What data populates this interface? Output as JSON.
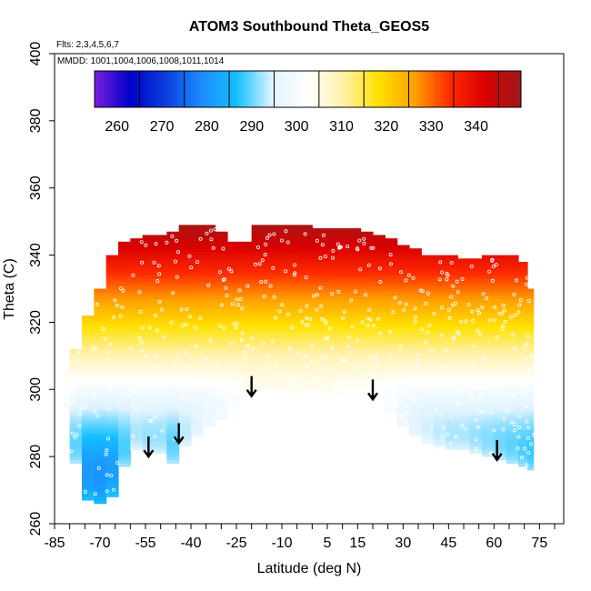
{
  "chart_data": {
    "type": "heatmap",
    "title": "ATOM3 Southbound Theta_GEOS5",
    "subtitle_flights": "Flts: 2,3,4,5,6,7",
    "subtitle_dates": "MMDD: 1001,1004,1006,1008,1011,1014",
    "xlabel": "Latitude (deg N)",
    "ylabel": "Theta (C)",
    "xlim": [
      -85,
      83
    ],
    "ylim": [
      260,
      400
    ],
    "x_ticks": [
      -85,
      -70,
      -55,
      -40,
      -25,
      -10,
      5,
      15,
      30,
      45,
      60,
      75
    ],
    "y_ticks": [
      260,
      280,
      300,
      320,
      340,
      360,
      380,
      400
    ],
    "colorbar": {
      "ticks": [
        260,
        270,
        280,
        290,
        300,
        310,
        320,
        330,
        340
      ],
      "range": [
        255,
        350
      ],
      "colors": [
        "#7b1fe0",
        "#0000c8",
        "#0b3fdc",
        "#1e8bff",
        "#13c0ff",
        "#dff3ff",
        "#ffffff",
        "#fff1a8",
        "#ffe100",
        "#ffa000",
        "#ff2a00",
        "#d90000",
        "#9e1a1a"
      ]
    },
    "curtain": {
      "lat": [
        -82,
        -78,
        -74,
        -70,
        -66,
        -62,
        -58,
        -54,
        -50,
        -46,
        -42,
        -38,
        -34,
        -30,
        -26,
        -22,
        -18,
        -14,
        -10,
        -6,
        -2,
        2,
        6,
        10,
        14,
        18,
        22,
        26,
        30,
        34,
        38,
        42,
        46,
        50,
        54,
        58,
        62,
        66,
        70,
        72
      ],
      "theta_bottom": [
        293,
        278,
        267,
        266,
        268,
        277,
        282,
        281,
        281,
        278,
        283,
        286,
        289,
        291,
        294,
        298,
        300,
        300,
        300,
        299,
        300,
        300,
        299,
        298,
        297,
        297,
        296,
        293,
        289,
        286,
        284,
        283,
        282,
        282,
        281,
        280,
        279,
        278,
        277,
        276
      ],
      "theta_top": [
        305,
        312,
        322,
        330,
        340,
        344,
        345,
        346,
        346,
        347,
        349,
        349,
        349,
        347,
        344,
        344,
        349,
        349,
        349,
        349,
        349,
        348,
        348,
        348,
        348,
        347,
        346,
        345,
        343,
        342,
        340,
        340,
        340,
        339,
        339,
        340,
        340,
        340,
        338,
        330
      ],
      "surface_theta": 310
    },
    "arrows": [
      {
        "lat": -54,
        "theta": 280
      },
      {
        "lat": -44,
        "theta": 284
      },
      {
        "lat": -20,
        "theta": 298
      },
      {
        "lat": 20,
        "theta": 297
      },
      {
        "lat": 61,
        "theta": 279
      }
    ]
  }
}
